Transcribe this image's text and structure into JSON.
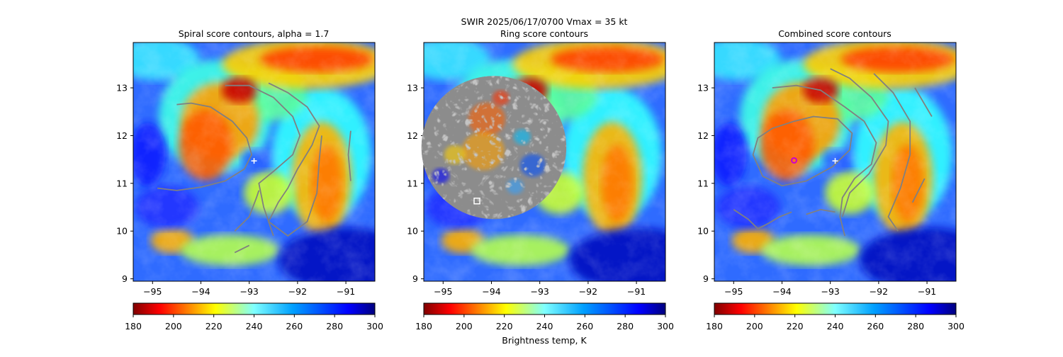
{
  "figure": {
    "suptitle_line1": "SWIR  2025/06/17/0700    Vmax = 35 kt",
    "colorbar_label": "Brightness temp, K"
  },
  "colors": {
    "contour": "#808080",
    "center_marker": "#ffffff",
    "combined_marker": "#cc00cc"
  },
  "chart_data": [
    {
      "type": "heatmap",
      "title": "Spiral score contours, alpha =  1.7",
      "xlim": [
        -95.4,
        -90.4
      ],
      "ylim": [
        8.95,
        13.95
      ],
      "xticks": [
        -95,
        -94,
        -93,
        -92,
        -91
      ],
      "yticks": [
        9,
        10,
        11,
        12,
        13
      ],
      "colormap": "jet_r",
      "clim": [
        180,
        300
      ],
      "colorbar_ticks": [
        180,
        200,
        220,
        240,
        260,
        280,
        300
      ],
      "center_marker": {
        "lon": -92.9,
        "lat": 11.47,
        "symbol": "plus"
      },
      "contour_lines": [
        [
          [
            -94.5,
            12.65
          ],
          [
            -94.2,
            12.68
          ],
          [
            -93.8,
            12.6
          ],
          [
            -93.35,
            12.3
          ],
          [
            -93.05,
            11.95
          ],
          [
            -92.95,
            11.6
          ],
          [
            -93.1,
            11.3
          ],
          [
            -93.5,
            11.05
          ],
          [
            -94.0,
            10.92
          ],
          [
            -94.5,
            10.85
          ],
          [
            -94.9,
            10.9
          ]
        ],
        [
          [
            -93.5,
            13.05
          ],
          [
            -93.0,
            13.05
          ],
          [
            -92.5,
            12.8
          ],
          [
            -92.1,
            12.4
          ],
          [
            -91.95,
            12.0
          ],
          [
            -92.1,
            11.6
          ],
          [
            -92.5,
            11.25
          ],
          [
            -92.8,
            11.0
          ],
          [
            -92.75,
            10.75
          ],
          [
            -92.7,
            10.5
          ],
          [
            -92.6,
            10.2
          ],
          [
            -92.5,
            9.9
          ]
        ],
        [
          [
            -92.6,
            13.1
          ],
          [
            -92.2,
            12.9
          ],
          [
            -91.8,
            12.6
          ],
          [
            -91.55,
            12.2
          ],
          [
            -91.7,
            11.8
          ],
          [
            -92.0,
            11.3
          ],
          [
            -92.2,
            10.9
          ],
          [
            -92.4,
            10.6
          ],
          [
            -92.6,
            10.2
          ],
          [
            -92.2,
            9.9
          ],
          [
            -91.8,
            10.2
          ],
          [
            -91.6,
            10.8
          ],
          [
            -91.55,
            11.5
          ],
          [
            -91.5,
            12.0
          ]
        ],
        [
          [
            -93.3,
            10.0
          ],
          [
            -93.0,
            10.3
          ],
          [
            -92.85,
            10.7
          ],
          [
            -92.8,
            10.85
          ]
        ],
        [
          [
            -90.9,
            12.1
          ],
          [
            -90.95,
            11.6
          ],
          [
            -90.9,
            11.05
          ]
        ],
        [
          [
            -93.3,
            9.55
          ],
          [
            -93.0,
            9.7
          ]
        ]
      ]
    },
    {
      "type": "heatmap",
      "title": "Ring score contours",
      "xlim": [
        -95.4,
        -90.4
      ],
      "ylim": [
        8.95,
        13.95
      ],
      "xticks": [
        -95,
        -94,
        -93,
        -92,
        -91
      ],
      "yticks": [
        9,
        10,
        11,
        12,
        13
      ],
      "colormap": "jet_r",
      "clim": [
        180,
        300
      ],
      "colorbar_ticks": [
        180,
        200,
        220,
        240,
        260,
        280,
        300
      ],
      "center_marker": {
        "lon": -94.3,
        "lat": 10.63,
        "symbol": "square"
      },
      "contour_region": {
        "center_lon": -93.95,
        "center_lat": 11.75,
        "radius_deg": 1.5
      }
    },
    {
      "type": "heatmap",
      "title": "Combined score contours",
      "xlim": [
        -95.4,
        -90.4
      ],
      "ylim": [
        8.95,
        13.95
      ],
      "xticks": [
        -95,
        -94,
        -93,
        -92,
        -91
      ],
      "yticks": [
        9,
        10,
        11,
        12,
        13
      ],
      "colormap": "jet_r",
      "clim": [
        180,
        300
      ],
      "colorbar_ticks": [
        180,
        200,
        220,
        240,
        260,
        280,
        300
      ],
      "center_marker": {
        "lon": -92.9,
        "lat": 11.47,
        "symbol": "plus"
      },
      "combined_marker": {
        "lon": -93.75,
        "lat": 11.48,
        "symbol": "circle"
      },
      "contour_lines": [
        [
          [
            -93.75,
            12.3
          ],
          [
            -93.35,
            12.4
          ],
          [
            -92.85,
            12.35
          ],
          [
            -92.55,
            12.05
          ],
          [
            -92.6,
            11.7
          ],
          [
            -92.95,
            11.35
          ],
          [
            -93.5,
            11.05
          ],
          [
            -94.0,
            10.95
          ],
          [
            -94.4,
            11.15
          ],
          [
            -94.6,
            11.6
          ],
          [
            -94.5,
            11.95
          ],
          [
            -94.2,
            12.15
          ],
          [
            -93.75,
            12.3
          ]
        ],
        [
          [
            -94.2,
            13.0
          ],
          [
            -93.7,
            13.05
          ],
          [
            -93.2,
            12.95
          ],
          [
            -92.7,
            12.6
          ],
          [
            -92.3,
            12.3
          ],
          [
            -92.05,
            11.85
          ],
          [
            -92.15,
            11.4
          ],
          [
            -92.5,
            11.1
          ],
          [
            -92.75,
            10.7
          ],
          [
            -92.8,
            10.3
          ],
          [
            -92.7,
            9.9
          ]
        ],
        [
          [
            -93.0,
            13.4
          ],
          [
            -92.6,
            13.2
          ],
          [
            -92.15,
            12.8
          ],
          [
            -91.8,
            12.3
          ],
          [
            -91.85,
            11.8
          ],
          [
            -92.2,
            11.2
          ],
          [
            -92.6,
            10.8
          ],
          [
            -92.75,
            10.3
          ]
        ],
        [
          [
            -92.1,
            13.3
          ],
          [
            -91.7,
            12.9
          ],
          [
            -91.35,
            12.3
          ],
          [
            -91.35,
            11.6
          ],
          [
            -91.55,
            10.9
          ],
          [
            -91.8,
            10.3
          ],
          [
            -91.6,
            10.0
          ]
        ],
        [
          [
            -91.25,
            13.0
          ],
          [
            -90.9,
            12.4
          ]
        ],
        [
          [
            -95.0,
            10.45
          ],
          [
            -94.7,
            10.25
          ],
          [
            -94.5,
            10.05
          ],
          [
            -94.3,
            10.15
          ],
          [
            -94.05,
            10.3
          ],
          [
            -93.8,
            10.4
          ]
        ],
        [
          [
            -93.5,
            10.35
          ],
          [
            -93.2,
            10.45
          ],
          [
            -92.9,
            10.4
          ]
        ],
        [
          [
            -91.3,
            10.6
          ],
          [
            -91.05,
            11.1
          ]
        ]
      ]
    }
  ]
}
